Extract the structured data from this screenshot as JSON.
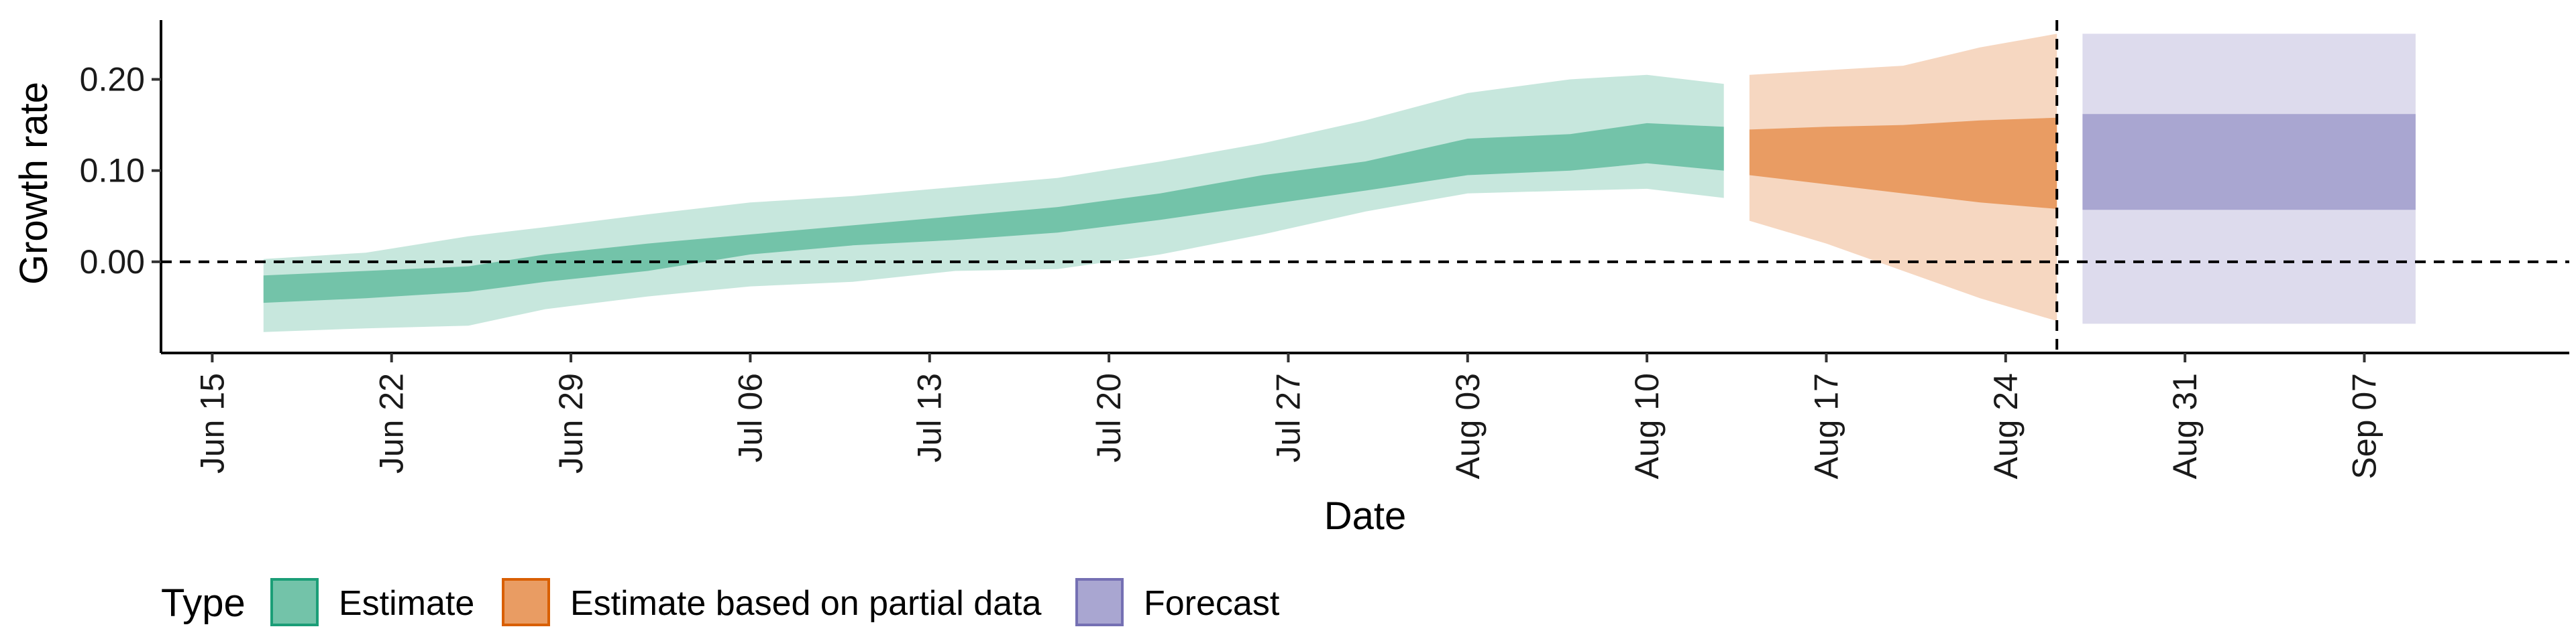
{
  "chart_data": {
    "type": "area",
    "xlabel": "Date",
    "ylabel": "Growth rate",
    "x_ticks": [
      "Jun 15",
      "Jun 22",
      "Jun 29",
      "Jul 06",
      "Jul 13",
      "Jul 20",
      "Jul 27",
      "Aug 03",
      "Aug 10",
      "Aug 17",
      "Aug 24",
      "Aug 31",
      "Sep 07"
    ],
    "y_ticks": [
      "0.00",
      "0.10",
      "0.20"
    ],
    "xlim": [
      "2020-06-13",
      "2020-09-15"
    ],
    "ylim": [
      -0.1,
      0.265
    ],
    "y_reference_line": 0.0,
    "x_reference_line": "2020-08-26",
    "legend": {
      "title": "Type",
      "placement": "bottom-left",
      "entries": [
        {
          "label": "Estimate",
          "fill": "#73c3a9",
          "stroke": "#1b9e77"
        },
        {
          "label": "Estimate based on partial data",
          "fill": "#e99c63",
          "stroke": "#d95f02"
        },
        {
          "label": "Forecast",
          "fill": "#a9a6d1",
          "stroke": "#7570b3"
        }
      ]
    },
    "series": [
      {
        "name": "Estimate",
        "dates": [
          "2020-06-17",
          "2020-06-21",
          "2020-06-25",
          "2020-06-28",
          "2020-07-02",
          "2020-07-06",
          "2020-07-10",
          "2020-07-14",
          "2020-07-18",
          "2020-07-22",
          "2020-07-26",
          "2020-07-30",
          "2020-08-03",
          "2020-08-07",
          "2020-08-10",
          "2020-08-13"
        ],
        "median": [
          -0.03,
          -0.025,
          -0.018,
          -0.008,
          0.005,
          0.018,
          0.028,
          0.038,
          0.048,
          0.062,
          0.078,
          0.095,
          0.112,
          0.118,
          0.125,
          0.12
        ],
        "lower_50": [
          -0.045,
          -0.04,
          -0.033,
          -0.022,
          -0.01,
          0.008,
          0.018,
          0.024,
          0.032,
          0.046,
          0.062,
          0.078,
          0.095,
          0.1,
          0.108,
          0.1
        ],
        "upper_50": [
          -0.015,
          -0.01,
          -0.005,
          0.008,
          0.02,
          0.03,
          0.04,
          0.05,
          0.06,
          0.075,
          0.095,
          0.11,
          0.135,
          0.14,
          0.152,
          0.148
        ],
        "lower_90": [
          -0.077,
          -0.073,
          -0.07,
          -0.052,
          -0.038,
          -0.027,
          -0.022,
          -0.01,
          -0.008,
          0.008,
          0.03,
          0.055,
          0.075,
          0.078,
          0.08,
          0.07
        ],
        "upper_90": [
          0.003,
          0.01,
          0.028,
          0.038,
          0.052,
          0.065,
          0.072,
          0.082,
          0.092,
          0.11,
          0.13,
          0.155,
          0.185,
          0.2,
          0.205,
          0.195
        ]
      },
      {
        "name": "Estimate based on partial data",
        "dates": [
          "2020-08-14",
          "2020-08-17",
          "2020-08-20",
          "2020-08-23",
          "2020-08-26"
        ],
        "median": [
          0.12,
          0.115,
          0.11,
          0.108,
          0.105
        ],
        "lower_50": [
          0.095,
          0.085,
          0.075,
          0.065,
          0.058
        ],
        "upper_50": [
          0.145,
          0.148,
          0.15,
          0.155,
          0.158
        ],
        "lower_90": [
          0.045,
          0.02,
          -0.01,
          -0.04,
          -0.065
        ],
        "upper_90": [
          0.205,
          0.21,
          0.215,
          0.235,
          0.25
        ]
      },
      {
        "name": "Forecast",
        "dates": [
          "2020-08-27",
          "2020-09-09"
        ],
        "median": [
          0.11,
          0.11
        ],
        "lower_50": [
          0.057,
          0.057
        ],
        "upper_50": [
          0.162,
          0.162
        ],
        "lower_90": [
          -0.068,
          -0.068
        ],
        "upper_90": [
          0.25,
          0.25
        ]
      }
    ]
  }
}
